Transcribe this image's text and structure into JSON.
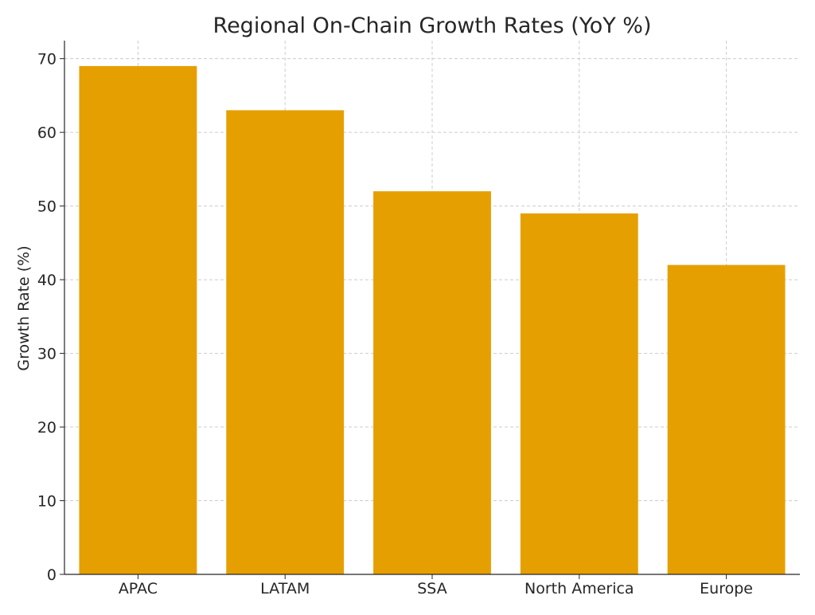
{
  "chart_data": {
    "type": "bar",
    "title": "Regional On-Chain Growth Rates (YoY %)",
    "xlabel": "",
    "ylabel": "Growth Rate (%)",
    "categories": [
      "APAC",
      "LATAM",
      "SSA",
      "North America",
      "Europe"
    ],
    "values": [
      69,
      63,
      52,
      49,
      42
    ],
    "ylim": [
      0,
      72.45
    ],
    "yticks": [
      0,
      10,
      20,
      30,
      40,
      50,
      60,
      70
    ],
    "grid": true,
    "bar_color": "#E69F00",
    "grid_color": "#cccccc",
    "axis_color": "#262626"
  }
}
